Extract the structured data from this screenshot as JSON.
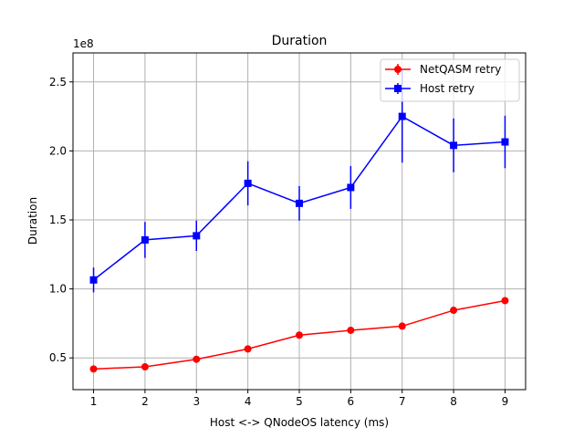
{
  "chart_data": {
    "type": "line",
    "title": "Duration",
    "xlabel": "Host <-> QNodeOS latency (ms)",
    "ylabel": "Duration",
    "y_offset_label": "1e8",
    "xlim": [
      0.6,
      9.4
    ],
    "ylim": [
      0.27,
      2.71
    ],
    "x_ticks": [
      1,
      2,
      3,
      4,
      5,
      6,
      7,
      8,
      9
    ],
    "x_tick_labels": [
      "1",
      "2",
      "3",
      "4",
      "5",
      "6",
      "7",
      "8",
      "9"
    ],
    "y_ticks": [
      0.5,
      1.0,
      1.5,
      2.0,
      2.5
    ],
    "y_tick_labels": [
      "0.5",
      "1.0",
      "1.5",
      "2.0",
      "2.5"
    ],
    "grid": true,
    "legend_position": "top-right",
    "series": [
      {
        "name": "NetQASM retry",
        "color": "#ff0000",
        "marker": "circle",
        "x": [
          1,
          2,
          3,
          4,
          5,
          6,
          7,
          8,
          9
        ],
        "y": [
          0.42,
          0.435,
          0.49,
          0.565,
          0.665,
          0.7,
          0.73,
          0.845,
          0.915
        ],
        "err": [
          0.005,
          0.005,
          0.008,
          0.008,
          0.008,
          0.008,
          0.008,
          0.008,
          0.008
        ]
      },
      {
        "name": "Host retry",
        "color": "#0000ff",
        "marker": "square",
        "x": [
          1,
          2,
          3,
          4,
          5,
          6,
          7,
          8,
          9
        ],
        "y": [
          1.065,
          1.355,
          1.385,
          1.765,
          1.62,
          1.735,
          2.25,
          2.04,
          2.065
        ],
        "err": [
          0.09,
          0.13,
          0.11,
          0.16,
          0.125,
          0.155,
          0.335,
          0.195,
          0.19
        ]
      }
    ]
  }
}
